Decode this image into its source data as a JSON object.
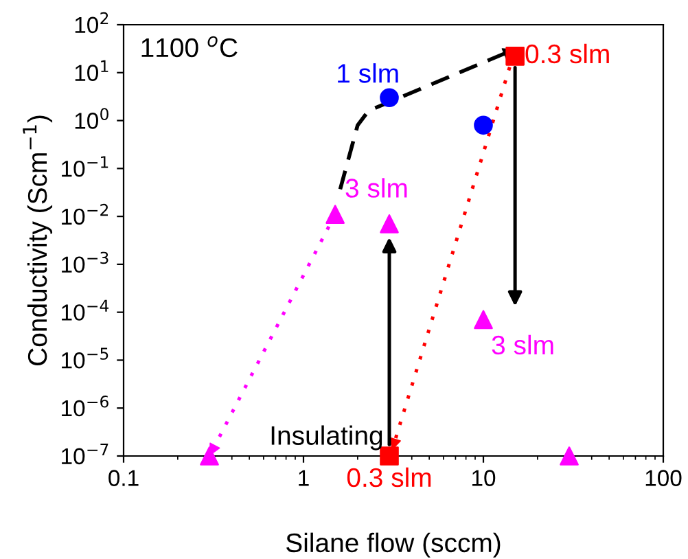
{
  "chart_data": {
    "type": "scatter",
    "xlabel": "Silane flow (sccm)",
    "ylabel": "Conductivity (Scm$^{−1}$)",
    "log": "xy",
    "xlim": [
      0.1,
      100
    ],
    "xticks": [
      0.1,
      1,
      10,
      100
    ],
    "ylim": [
      1e-07,
      100
    ],
    "yticks": [
      {
        "value": 1e-07,
        "label": "10$^{−7}$"
      },
      {
        "value": 1e-06,
        "label": "10$^{−6}$"
      },
      {
        "value": 1e-05,
        "label": "10$^{−5}$"
      },
      {
        "value": 0.0001,
        "label": "10$^{−4}$"
      },
      {
        "value": 0.001,
        "label": "10$^{−3}$"
      },
      {
        "value": 0.01,
        "label": "10$^{−2}$"
      },
      {
        "value": 0.1,
        "label": "10$^{−1}$"
      },
      {
        "value": 1,
        "label": "10$^{0}$"
      },
      {
        "value": 10,
        "label": "10$^{1}$"
      },
      {
        "value": 100,
        "label": "10$^{2}$"
      }
    ],
    "grid": false,
    "legend": false,
    "series": [
      {
        "type": "line",
        "color": "#000000",
        "line_style": "dashed",
        "marker": "none",
        "x": [
          1.6,
          2.0,
          2.3,
          15
        ],
        "values": [
          0.037,
          0.8,
          1.6,
          31
        ]
      },
      {
        "type": "line",
        "color": "#ff00ff",
        "line_style": "dotted",
        "x": [
          1.5,
          0.3
        ],
        "values": [
          0.011,
          1e-07
        ]
      },
      {
        "type": "line",
        "color": "#ff0000",
        "line_style": "dotted",
        "x": [
          14,
          3.1
        ],
        "values": [
          13,
          1.3e-07
        ]
      },
      {
        "name": "1 slm",
        "color": "#0000ff",
        "marker": "circle",
        "x": [
          3,
          10
        ],
        "values": [
          3,
          0.8
        ]
      },
      {
        "name": "0.3 slm",
        "color": "#ff0000",
        "marker": "square",
        "x": [
          15
        ],
        "values": [
          22
        ]
      },
      {
        "name": "0.3 slm",
        "color": "#ff0000",
        "marker": "square",
        "x": [
          3
        ],
        "values": [
          1e-07
        ]
      },
      {
        "name": "3 slm",
        "color": "#ff00ff",
        "marker": "triangle",
        "x": [
          1.5,
          3
        ],
        "values": [
          0.011,
          0.007
        ]
      },
      {
        "name": "3 slm",
        "color": "#ff00ff",
        "marker": "triangle",
        "x": [
          10
        ],
        "values": [
          7e-05
        ]
      },
      {
        "color": "#ff00ff",
        "marker": "triangle",
        "x": [
          0.3,
          30
        ],
        "values": [
          1e-07,
          1e-07
        ]
      }
    ],
    "annotations": [
      "1100 $^{o}$C",
      {
        "text": "Insulating",
        "x": 3,
        "y": 1e-07
      }
    ]
  }
}
